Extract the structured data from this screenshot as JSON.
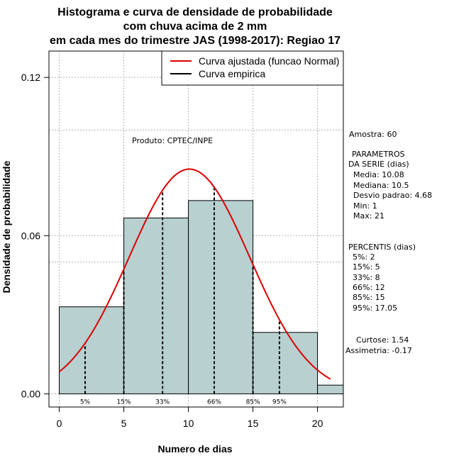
{
  "chart_data": {
    "type": "histogram",
    "title_lines": [
      "Histograma e curva de densidade de probabilidade",
      "com chuva acima de 2 mm",
      "em cada mes do trimestre JAS (1998-2017): Regiao 17"
    ],
    "xlabel": "Numero de dias",
    "ylabel": "Densidade de probabilidade",
    "xlim": [
      -0.8,
      22
    ],
    "ylim": [
      -0.005,
      0.13
    ],
    "xticks": [
      0,
      5,
      10,
      15,
      20
    ],
    "xtick_labels": [
      "0",
      "5",
      "10",
      "15",
      "20"
    ],
    "yticks": [
      0.0,
      0.06,
      0.12
    ],
    "ytick_labels": [
      "0.00",
      "0.06",
      "0.12"
    ],
    "grid": true,
    "bins": [
      {
        "start": 0,
        "end": 5,
        "density": 0.033
      },
      {
        "start": 5,
        "end": 10,
        "density": 0.0667
      },
      {
        "start": 10,
        "end": 15,
        "density": 0.0733
      },
      {
        "start": 15,
        "end": 20,
        "density": 0.0233
      },
      {
        "start": 20,
        "end": 22,
        "density": 0.0033
      }
    ],
    "bar_color": "#b8d0d0",
    "curve_color": "#dd0000",
    "normal_fit": {
      "mean": 10.08,
      "sd": 4.68,
      "x_range": [
        0,
        21
      ]
    },
    "percentile_lines": [
      {
        "label": "5%",
        "x": 2
      },
      {
        "label": "15%",
        "x": 5
      },
      {
        "label": "33%",
        "x": 8
      },
      {
        "label": "66%",
        "x": 12
      },
      {
        "label": "85%",
        "x": 15
      },
      {
        "label": "95%",
        "x": 17.05
      }
    ],
    "legend": {
      "position": "top-right",
      "entries": [
        {
          "label": "Curva ajustada (funcao Normal)",
          "color": "#dd0000"
        },
        {
          "label": "Curva empirica",
          "color": "#000000"
        }
      ]
    },
    "annotations": {
      "produto": "Produto: CPTEC/INPE",
      "amostra": "Amostra: 60",
      "parametros_header": [
        "PARAMETROS",
        "DA SERIE (dias)"
      ],
      "parametros": [
        "Media: 10.08",
        "Mediana: 10.5",
        "Desvio padrao: 4.68",
        "Min: 1",
        "Max: 21"
      ],
      "percentis_header": "PERCENTIS (dias)",
      "percentis": [
        "5%: 2",
        "15%: 5",
        "33%: 8",
        "66%: 12",
        "85%: 15",
        "95%: 17.05"
      ],
      "curtose": "Curtose: 1.54",
      "assimetria": "Assimetria: -0.17"
    }
  }
}
